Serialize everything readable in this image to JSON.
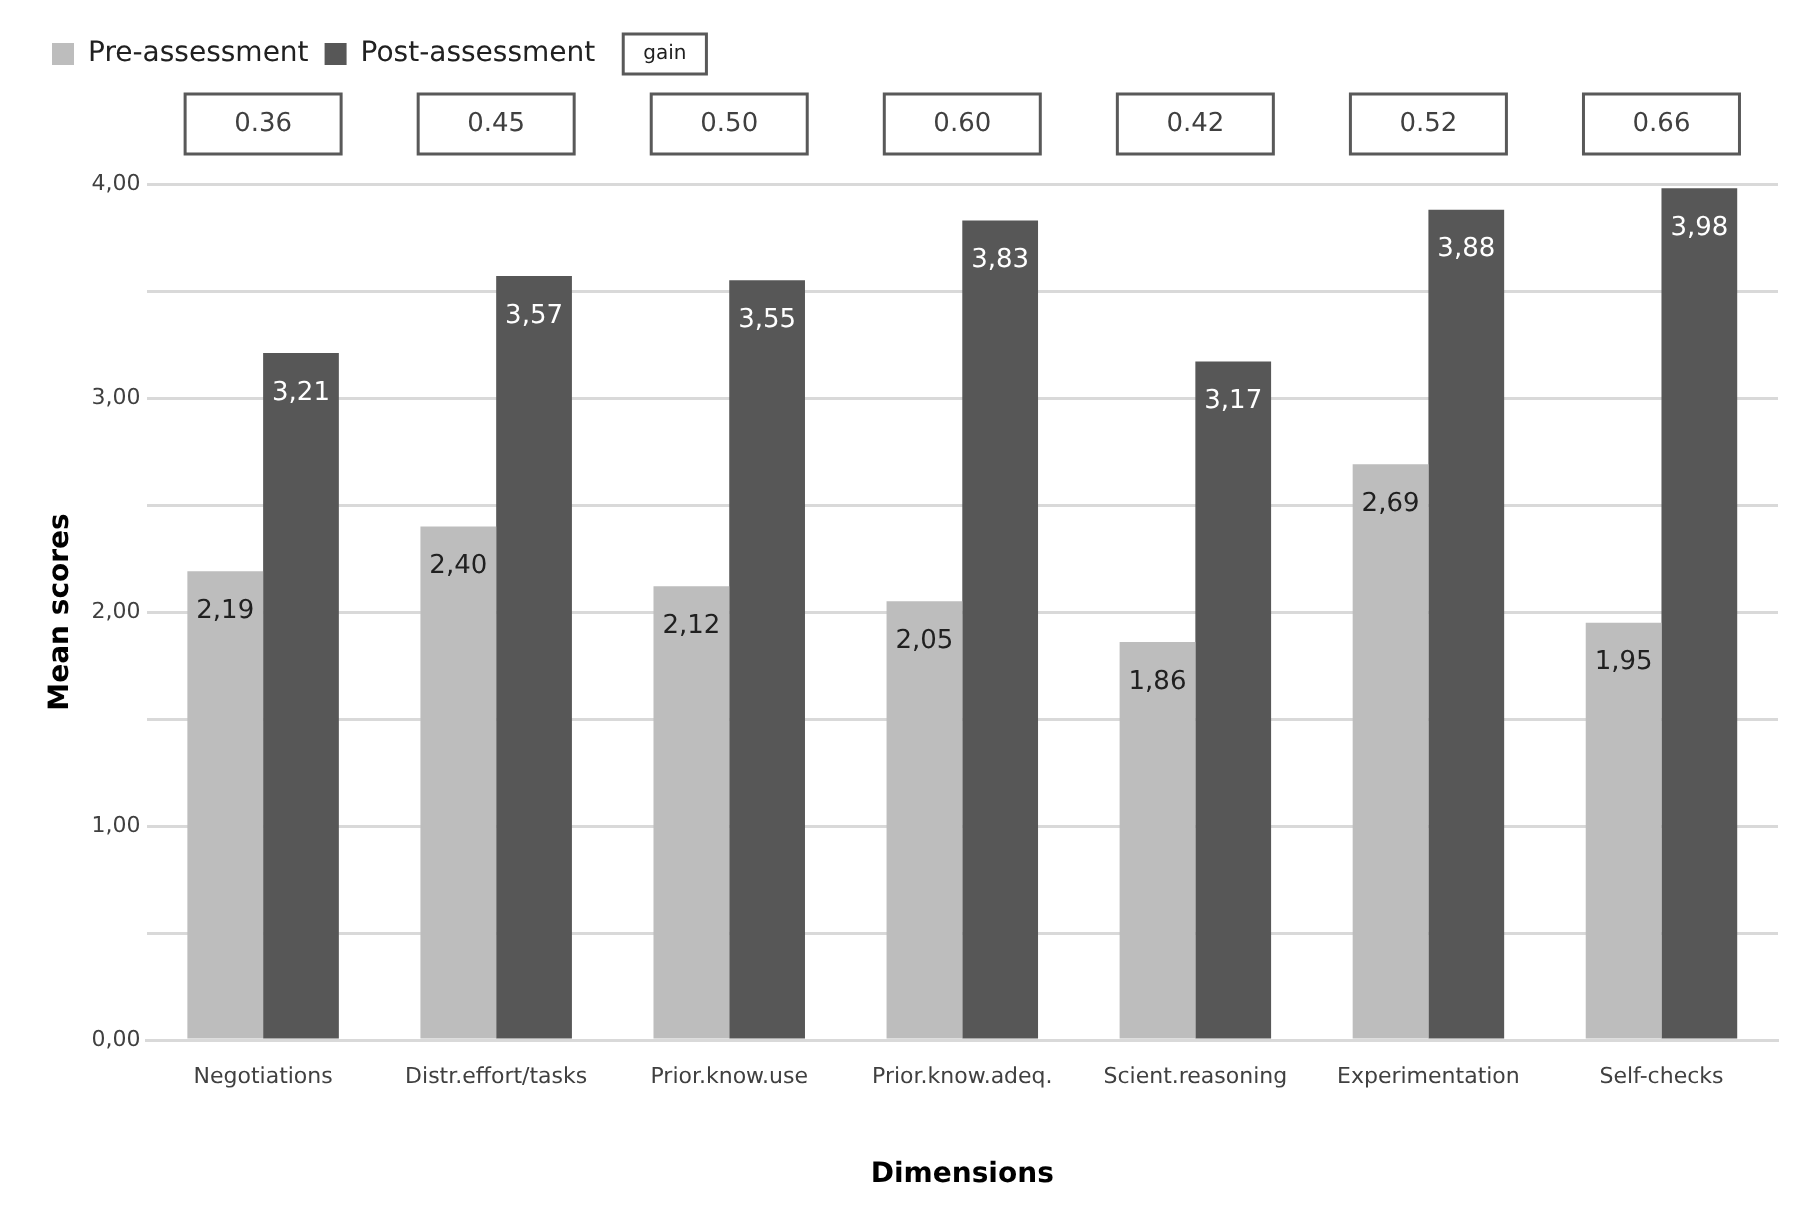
{
  "chart_data": {
    "type": "bar",
    "xlabel": "Dimensions",
    "ylabel": "Mean scores",
    "categories": [
      "Negotiations",
      "Distr.effort/tasks",
      "Prior.know.use",
      "Prior.know.adeq.",
      "Scient.reasoning",
      "Experimentation",
      "Self-checks"
    ],
    "series": [
      {
        "name": "Pre-assessment",
        "color": "#bdbdbd",
        "values": [
          2.19,
          2.4,
          2.12,
          2.05,
          1.86,
          2.69,
          1.95
        ],
        "value_labels": [
          "2,19",
          "2,40",
          "2,12",
          "2,05",
          "1,86",
          "2,69",
          "1,95"
        ]
      },
      {
        "name": "Post-assessment",
        "color": "#575757",
        "values": [
          3.21,
          3.57,
          3.55,
          3.83,
          3.17,
          3.88,
          3.98
        ],
        "value_labels": [
          "3,21",
          "3,57",
          "3,55",
          "3,83",
          "3,17",
          "3,88",
          "3,98"
        ]
      }
    ],
    "ylim": [
      0,
      4
    ],
    "yticks": [
      {
        "value": 0,
        "label": "0,00"
      },
      {
        "value": 0.5,
        "label": null
      },
      {
        "value": 1,
        "label": "1,00"
      },
      {
        "value": 1.5,
        "label": null
      },
      {
        "value": 2,
        "label": "2,00"
      },
      {
        "value": 2.5,
        "label": null
      },
      {
        "value": 3,
        "label": "3,00"
      },
      {
        "value": 3.5,
        "label": null
      },
      {
        "value": 4,
        "label": "4,00"
      }
    ],
    "grid": "y",
    "legend": "top left",
    "annotations": [
      "gain",
      "0.36",
      "0.45",
      "0.50",
      "0.60",
      "0.42",
      "0.52",
      "0.66"
    ]
  }
}
